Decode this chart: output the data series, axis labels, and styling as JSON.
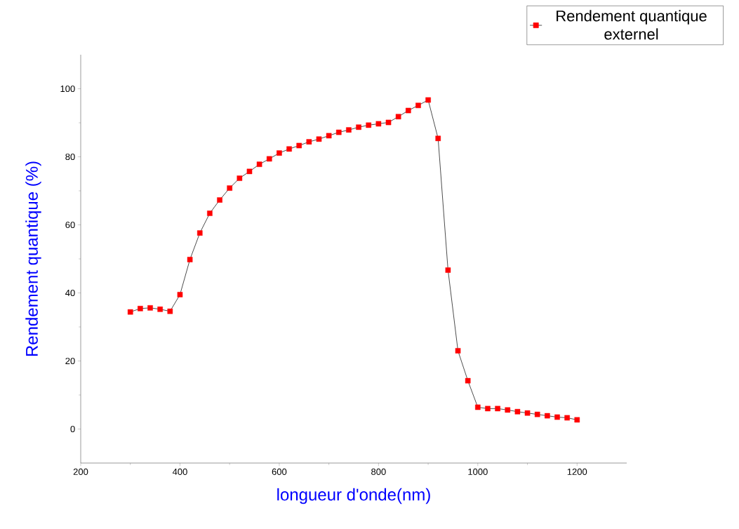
{
  "chart_data": {
    "type": "line",
    "xlabel": "longueur d'onde(nm)",
    "ylabel": "Rendement quantique (%)",
    "x": [
      300,
      320,
      340,
      360,
      380,
      400,
      420,
      440,
      460,
      480,
      500,
      520,
      540,
      560,
      580,
      600,
      620,
      640,
      660,
      680,
      700,
      720,
      740,
      760,
      780,
      800,
      820,
      840,
      860,
      880,
      900,
      920,
      940,
      960,
      980,
      1000,
      1020,
      1040,
      1060,
      1080,
      1100,
      1120,
      1140,
      1160,
      1180,
      1200
    ],
    "series": [
      {
        "name": "Rendement quantique externel",
        "color": "#ff0000",
        "values": [
          34.4,
          35.4,
          35.6,
          35.2,
          34.6,
          39.5,
          49.8,
          57.6,
          63.4,
          67.3,
          70.8,
          73.7,
          75.7,
          77.8,
          79.4,
          81.1,
          82.3,
          83.3,
          84.4,
          85.2,
          86.2,
          87.2,
          87.9,
          88.7,
          89.3,
          89.7,
          90.1,
          91.8,
          93.6,
          95.1,
          96.7,
          85.4,
          46.7,
          23.0,
          14.2,
          6.4,
          6.0,
          6.0,
          5.6,
          5.1,
          4.7,
          4.3,
          3.9,
          3.5,
          3.3,
          2.7
        ]
      }
    ],
    "xlim": [
      200,
      1300
    ],
    "ylim": [
      -10,
      110
    ],
    "xticks": [
      200,
      400,
      600,
      800,
      1000,
      1200
    ],
    "yticks": [
      0,
      20,
      40,
      60,
      80,
      100
    ],
    "marker": "square",
    "line_style": "solid",
    "legend": "top right",
    "grid": false
  }
}
